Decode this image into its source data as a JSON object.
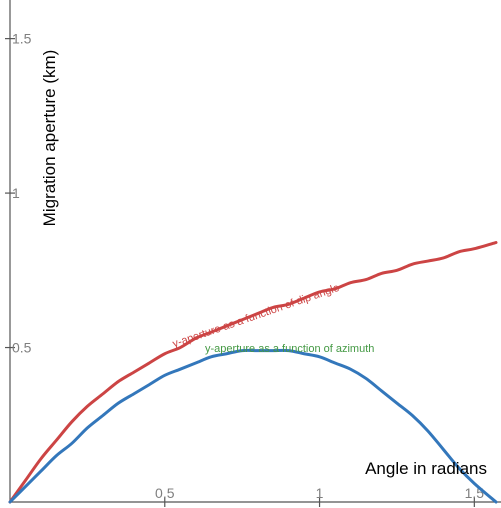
{
  "chart_data": {
    "type": "line",
    "title": "",
    "xlabel": "Angle in radians",
    "ylabel": "Migration aperture (km)",
    "xlim": [
      0,
      1.57
    ],
    "ylim": [
      0,
      1.57
    ],
    "grid": false,
    "x_ticks": [
      {
        "value": 0.5,
        "label": "0.5"
      },
      {
        "value": 1,
        "label": "1"
      },
      {
        "value": 1.5,
        "label": "1.5"
      }
    ],
    "y_ticks": [
      {
        "value": 0.5,
        "label": "0.5"
      },
      {
        "value": 1,
        "label": "1"
      },
      {
        "value": 1.5,
        "label": "1.5"
      }
    ],
    "series": [
      {
        "color": "#cc4444",
        "x": [
          0,
          0.05,
          0.1,
          0.15,
          0.2,
          0.25,
          0.3,
          0.35,
          0.4,
          0.45,
          0.5,
          0.55,
          0.6,
          0.65,
          0.7,
          0.75,
          0.8,
          0.85,
          0.9,
          0.95,
          1.0,
          1.05,
          1.1,
          1.15,
          1.2,
          1.25,
          1.3,
          1.35,
          1.4,
          1.45,
          1.5,
          1.57
        ],
        "values": [
          0,
          0.07,
          0.14,
          0.2,
          0.26,
          0.31,
          0.35,
          0.39,
          0.42,
          0.45,
          0.48,
          0.5,
          0.53,
          0.55,
          0.57,
          0.59,
          0.61,
          0.63,
          0.64,
          0.66,
          0.68,
          0.69,
          0.71,
          0.72,
          0.74,
          0.75,
          0.77,
          0.78,
          0.79,
          0.81,
          0.82,
          0.84
        ]
      },
      {
        "color": "#3377bb",
        "x": [
          0,
          0.05,
          0.1,
          0.15,
          0.2,
          0.25,
          0.3,
          0.35,
          0.4,
          0.45,
          0.5,
          0.55,
          0.6,
          0.65,
          0.7,
          0.75,
          0.8,
          0.85,
          0.9,
          0.95,
          1.0,
          1.05,
          1.1,
          1.15,
          1.2,
          1.25,
          1.3,
          1.35,
          1.4,
          1.45,
          1.5,
          1.57
        ],
        "values": [
          0,
          0.05,
          0.1,
          0.15,
          0.19,
          0.24,
          0.28,
          0.32,
          0.35,
          0.38,
          0.41,
          0.43,
          0.45,
          0.47,
          0.48,
          0.49,
          0.49,
          0.49,
          0.49,
          0.48,
          0.47,
          0.45,
          0.43,
          0.4,
          0.36,
          0.32,
          0.28,
          0.23,
          0.17,
          0.11,
          0.06,
          0.0
        ]
      }
    ],
    "annotations": [
      {
        "text": "y-aperture as a function of dip angle",
        "color": "#cc4444",
        "x": 0.53,
        "y": 0.5
      },
      {
        "text": "y-aperture as a function of azimuth",
        "color": "#449944",
        "x": 0.63,
        "y": 0.485
      }
    ]
  }
}
